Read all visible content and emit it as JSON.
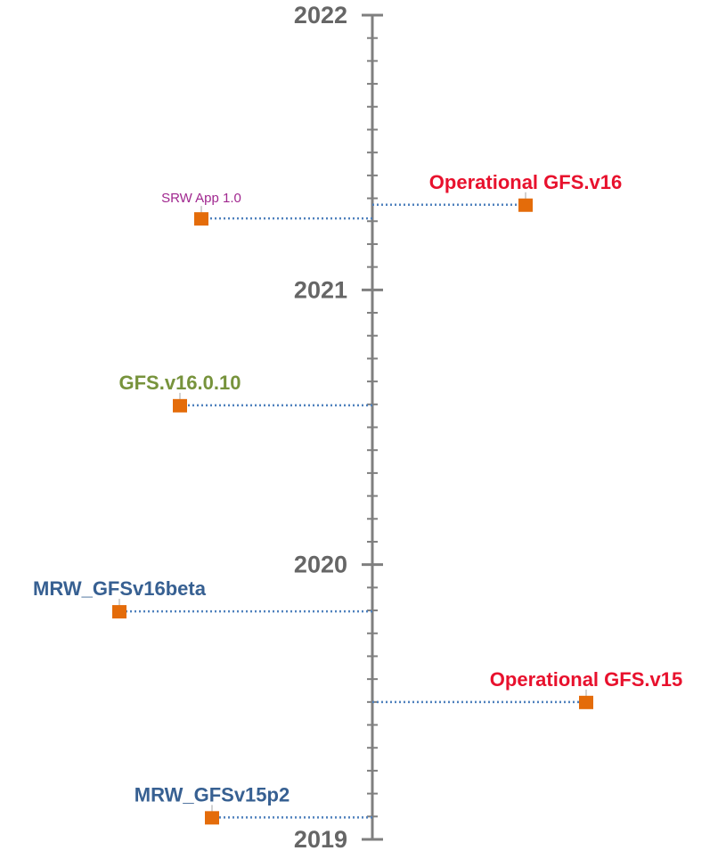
{
  "chart_data": {
    "type": "scatter",
    "title": "",
    "xlabel": "",
    "ylabel": "",
    "ylim": [
      2019,
      2022
    ],
    "y_ticks": [
      "2019",
      "2020",
      "2021",
      "2022"
    ],
    "minor_ticks_per_year": 12,
    "grid": false,
    "points": [
      {
        "label": "SRW App 1.0",
        "y": 2021.26,
        "side": "left",
        "offset": 0.48,
        "color": "#a0278f",
        "weight": "normal",
        "size": 15
      },
      {
        "label": "Operational GFS.v16",
        "y": 2021.31,
        "side": "right",
        "offset": 0.43,
        "color": "#e8112d",
        "weight": "bold",
        "size": 22
      },
      {
        "label": "GFS.v16.0.10",
        "y": 2020.58,
        "side": "left",
        "offset": 0.54,
        "color": "#77933c",
        "weight": "bold",
        "size": 22
      },
      {
        "label": "MRW_GFSv16beta",
        "y": 2019.83,
        "side": "left",
        "offset": 0.71,
        "color": "#376092",
        "weight": "bold",
        "size": 22
      },
      {
        "label": "Operational GFS.v15",
        "y": 2019.5,
        "side": "right",
        "offset": 0.6,
        "color": "#e8112d",
        "weight": "bold",
        "size": 22
      },
      {
        "label": "MRW_GFSv15p2",
        "y": 2019.08,
        "side": "left",
        "offset": 0.45,
        "color": "#376092",
        "weight": "bold",
        "size": 22
      }
    ],
    "colors": {
      "axis": "#7f7f7f",
      "marker": "#e46c0a",
      "connector": "#4f81bd",
      "year_text": "#666666"
    }
  }
}
